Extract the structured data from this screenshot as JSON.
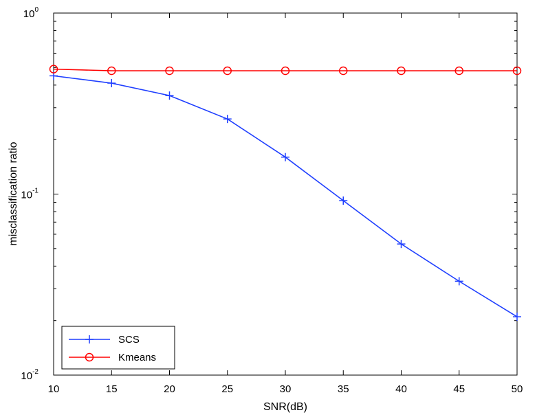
{
  "chart_data": {
    "type": "line",
    "title": "",
    "xlabel": "SNR(dB)",
    "ylabel": "misclassification ratio",
    "xlim": [
      10,
      50
    ],
    "ylim": [
      0.01,
      1
    ],
    "yscale": "log",
    "grid": false,
    "legend_position": "bottom-left",
    "x": [
      10,
      15,
      20,
      25,
      30,
      35,
      40,
      45,
      50
    ],
    "x_ticks": [
      "10",
      "15",
      "20",
      "25",
      "30",
      "35",
      "40",
      "45",
      "50"
    ],
    "y_ticks": [
      {
        "base": "10",
        "exp": "-2"
      },
      {
        "base": "10",
        "exp": "-1"
      },
      {
        "base": "10",
        "exp": "0"
      }
    ],
    "series": [
      {
        "name": "SCS",
        "color": "#1f3fff",
        "marker": "plus",
        "values": [
          0.45,
          0.41,
          0.35,
          0.26,
          0.16,
          0.092,
          0.053,
          0.033,
          0.021
        ]
      },
      {
        "name": "Kmeans",
        "color": "#ff0000",
        "marker": "circle",
        "values": [
          0.49,
          0.48,
          0.48,
          0.48,
          0.48,
          0.48,
          0.48,
          0.48,
          0.48
        ]
      }
    ]
  }
}
